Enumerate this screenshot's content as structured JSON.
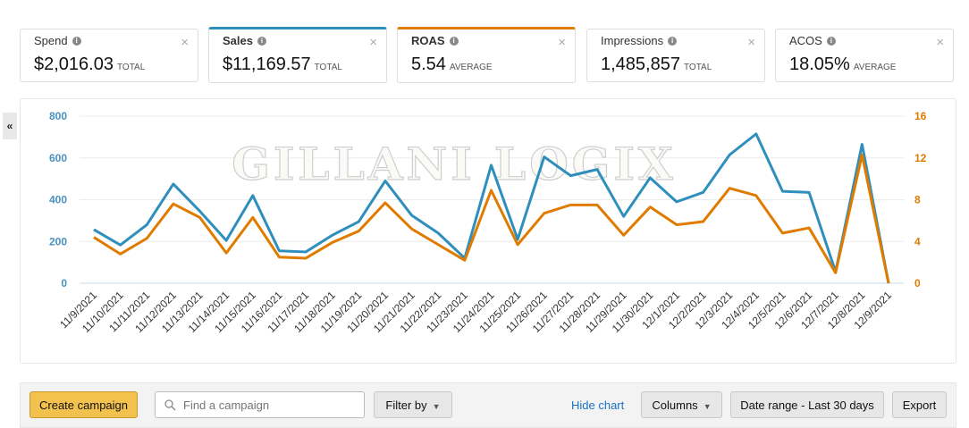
{
  "metrics": [
    {
      "label": "Spend",
      "value": "$2,016.03",
      "unit": "TOTAL",
      "selected": false
    },
    {
      "label": "Sales",
      "value": "$11,169.57",
      "unit": "TOTAL",
      "selected": true,
      "color": "#2e8fbd"
    },
    {
      "label": "ROAS",
      "value": "5.54",
      "unit": "AVERAGE",
      "selected": true,
      "color": "#e07b00"
    },
    {
      "label": "Impressions",
      "value": "1,485,857",
      "unit": "TOTAL",
      "selected": false
    },
    {
      "label": "ACOS",
      "value": "18.05%",
      "unit": "AVERAGE",
      "selected": false
    }
  ],
  "icons": {
    "info": "i",
    "close": "×",
    "collapse": "«",
    "search": "search-icon",
    "chevron": "chevron-down-icon"
  },
  "watermark": "GILLANI LOGIX",
  "chart_data": {
    "type": "line",
    "categories": [
      "11/9/2021",
      "11/10/2021",
      "11/11/2021",
      "11/12/2021",
      "11/13/2021",
      "11/14/2021",
      "11/15/2021",
      "11/16/2021",
      "11/17/2021",
      "11/18/2021",
      "11/19/2021",
      "11/20/2021",
      "11/21/2021",
      "11/22/2021",
      "11/23/2021",
      "11/24/2021",
      "11/25/2021",
      "11/26/2021",
      "11/27/2021",
      "11/28/2021",
      "11/29/2021",
      "11/30/2021",
      "12/1/2021",
      "12/2/2021",
      "12/3/2021",
      "12/4/2021",
      "12/5/2021",
      "12/6/2021",
      "12/7/2021",
      "12/8/2021",
      "12/9/2021"
    ],
    "series": [
      {
        "name": "Sales",
        "axis": "left",
        "color": "#2e8fbd",
        "values": [
          257,
          183,
          280,
          475,
          345,
          205,
          420,
          155,
          150,
          230,
          295,
          490,
          325,
          240,
          120,
          565,
          210,
          605,
          515,
          545,
          320,
          505,
          390,
          435,
          615,
          715,
          440,
          435,
          55,
          665,
          0
        ]
      },
      {
        "name": "ROAS",
        "axis": "right",
        "color": "#e07b00",
        "values": [
          4.4,
          2.8,
          4.3,
          7.6,
          6.3,
          2.9,
          6.3,
          2.5,
          2.4,
          3.9,
          5.0,
          7.7,
          5.2,
          3.7,
          2.2,
          8.9,
          3.7,
          6.7,
          7.5,
          7.5,
          4.6,
          7.3,
          5.6,
          5.9,
          9.1,
          8.4,
          4.8,
          5.3,
          1.0,
          12.3,
          0
        ]
      }
    ],
    "yleft": {
      "ticks": [
        "0",
        "200",
        "400",
        "600",
        "800"
      ],
      "range": [
        0,
        800
      ]
    },
    "yright": {
      "ticks": [
        "0",
        "4",
        "8",
        "12",
        "16"
      ],
      "range": [
        0,
        16
      ]
    },
    "grid": true
  },
  "toolbar": {
    "create": "Create campaign",
    "search_placeholder": "Find a campaign",
    "filter": "Filter by",
    "hide_chart": "Hide chart",
    "columns": "Columns",
    "date_range": "Date range - Last 30 days",
    "export": "Export"
  }
}
